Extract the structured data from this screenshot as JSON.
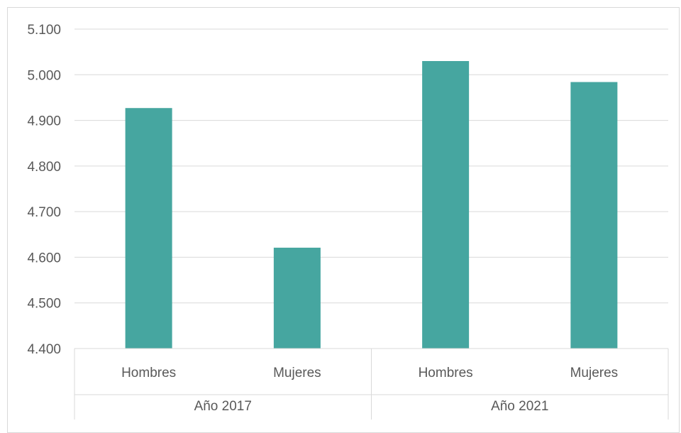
{
  "chart_data": {
    "type": "bar",
    "title": "",
    "xlabel": "",
    "ylabel": "",
    "ylim": [
      4400,
      5100
    ],
    "y_tick_step": 100,
    "y_tick_labels": [
      "4.400",
      "4.500",
      "4.600",
      "4.700",
      "4.800",
      "4.900",
      "5.000",
      "5.100"
    ],
    "grid": true,
    "legend": "none",
    "bar_color": "#46a6a0",
    "groups": [
      {
        "label": "Año 2017",
        "categories": [
          {
            "label": "Hombres",
            "value": 4927
          },
          {
            "label": "Mujeres",
            "value": 4621
          }
        ]
      },
      {
        "label": "Año 2021",
        "categories": [
          {
            "label": "Hombres",
            "value": 5030
          },
          {
            "label": "Mujeres",
            "value": 4984
          }
        ]
      }
    ]
  }
}
